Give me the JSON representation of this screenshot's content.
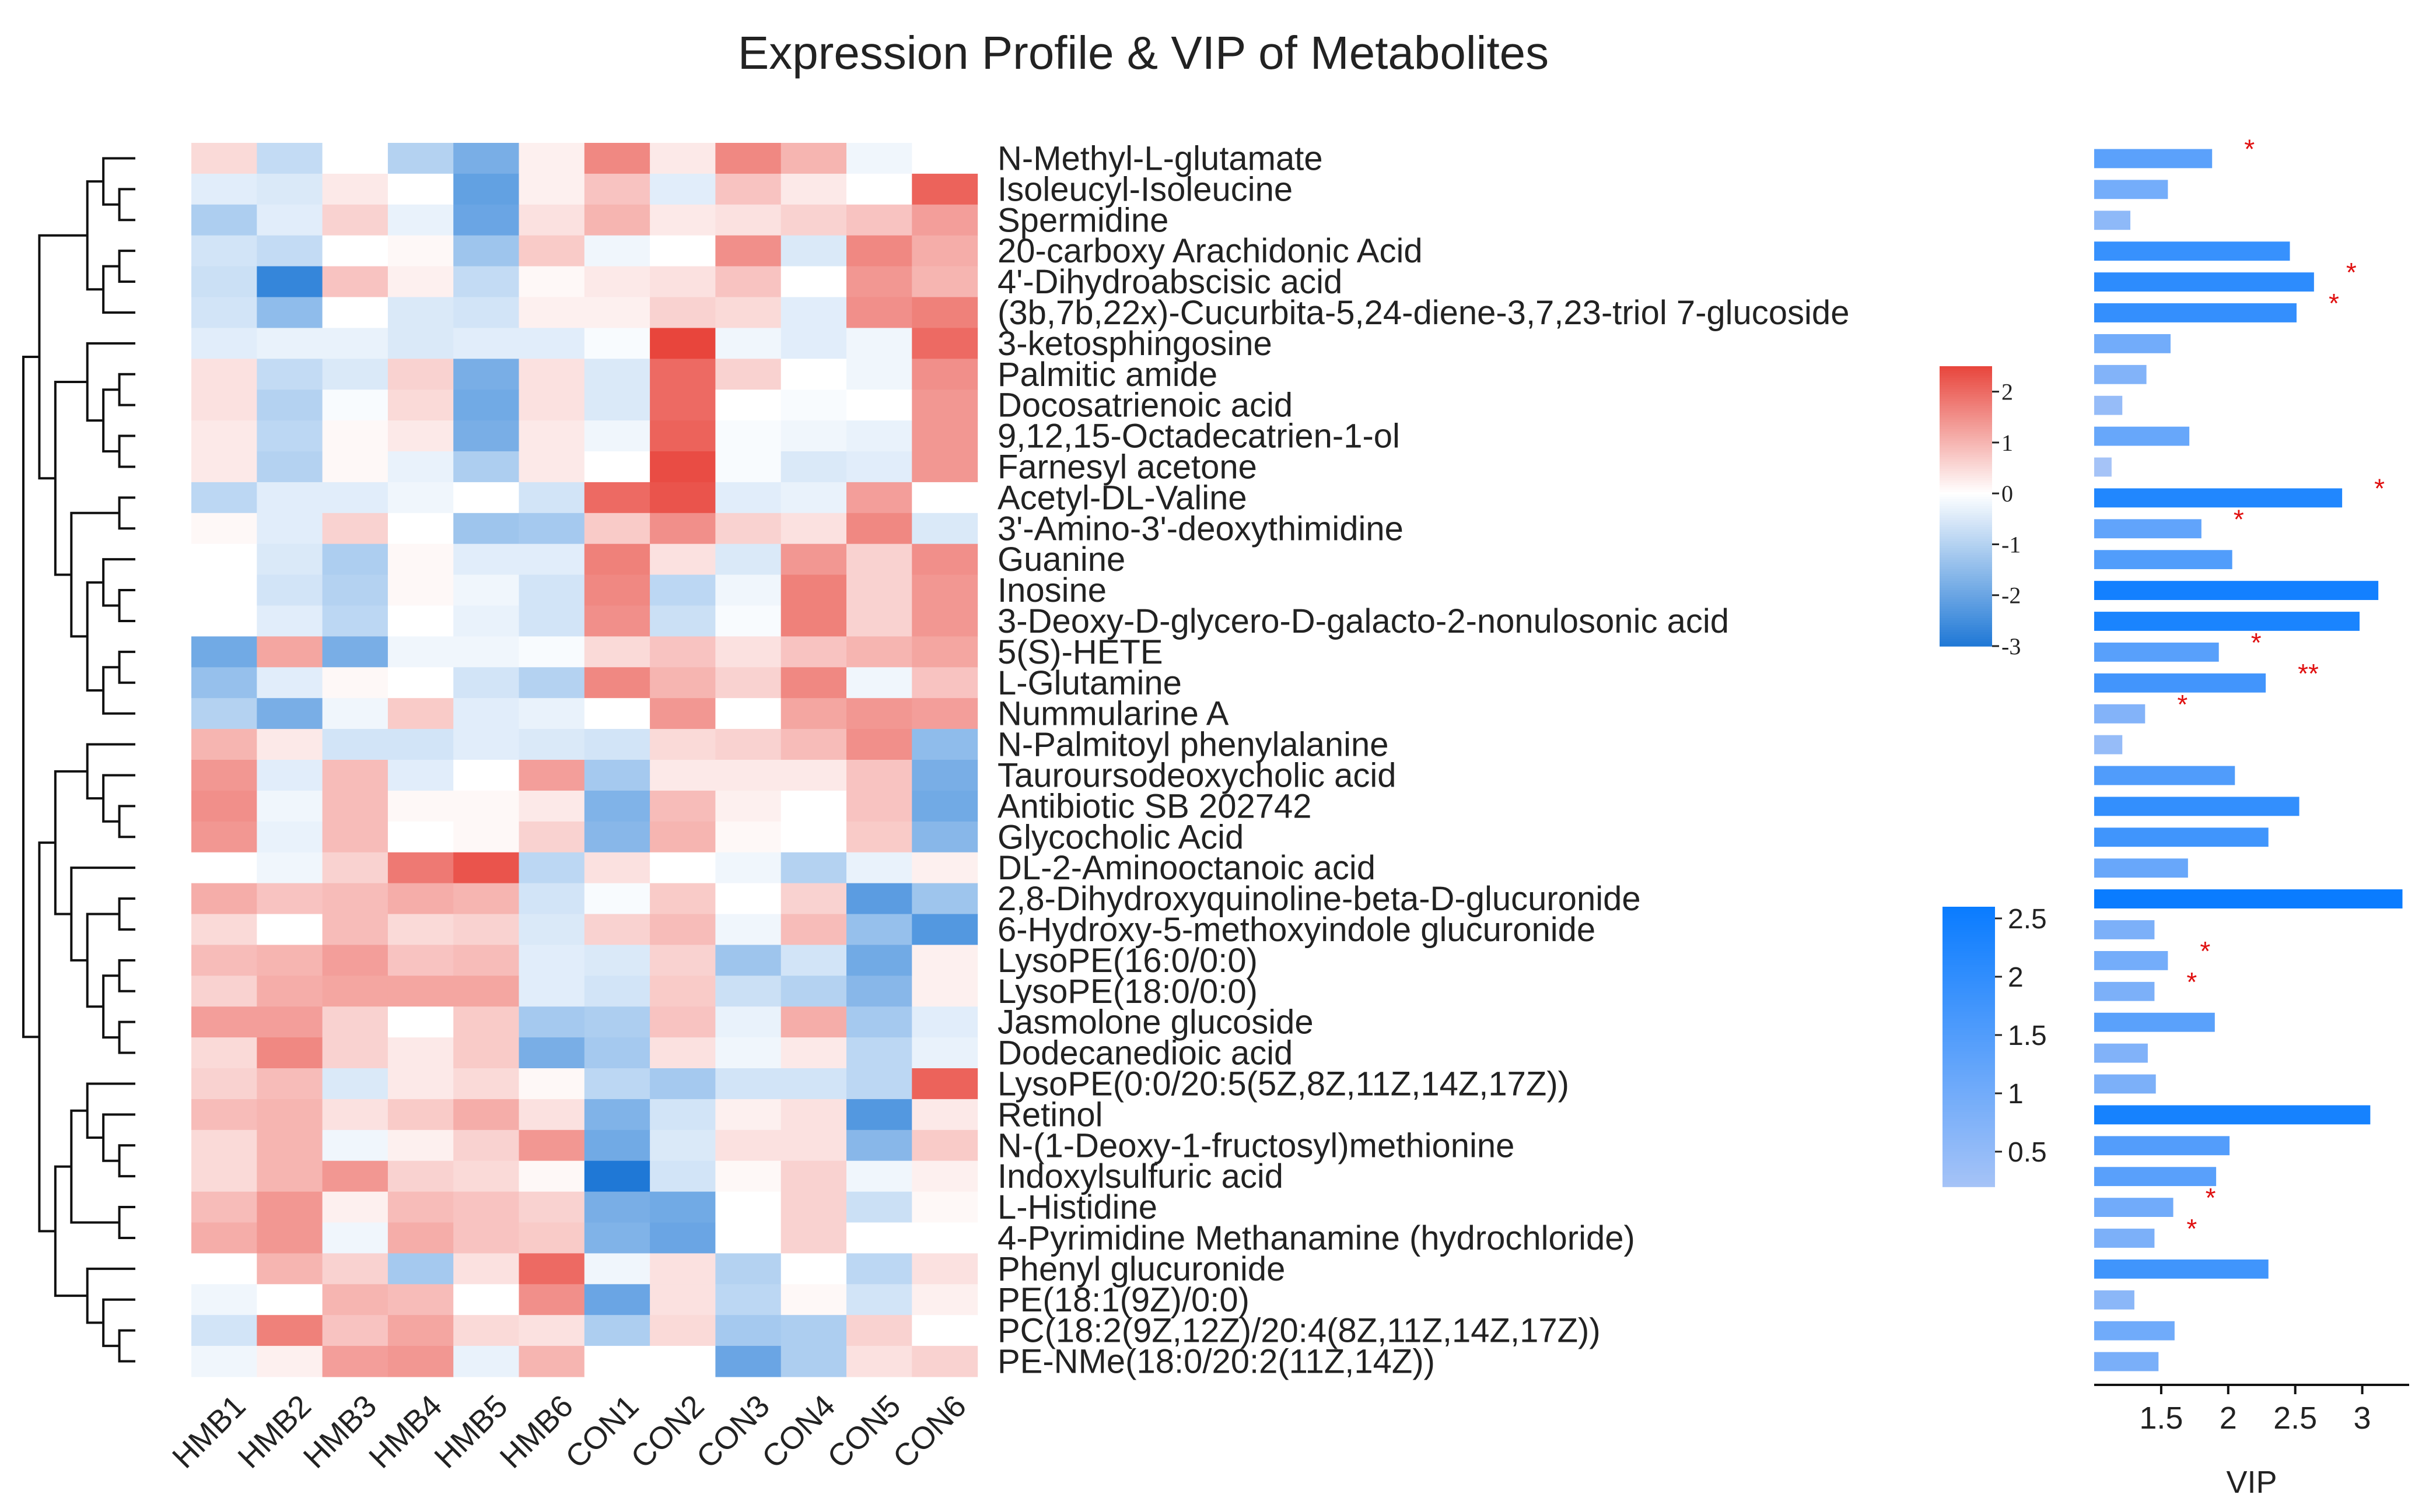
{
  "chart_data": {
    "type": "heatmap",
    "title": "Expression Profile & VIP of Metabolites",
    "samples": [
      "HMB1",
      "HMB2",
      "HMB3",
      "HMB4",
      "HMB5",
      "HMB6",
      "CON1",
      "CON2",
      "CON3",
      "CON4",
      "CON5",
      "CON6"
    ],
    "metabolites": [
      "N-Methyl-L-glutamate",
      "Isoleucyl-Isoleucine",
      "Spermidine",
      "20-carboxy Arachidonic Acid",
      "4'-Dihydroabscisic acid",
      "(3b,7b,22x)-Cucurbita-5,24-diene-3,7,23-triol 7-glucoside",
      "3-ketosphingosine",
      "Palmitic amide",
      "Docosatrienoic acid",
      "9,12,15-Octadecatrien-1-ol",
      "Farnesyl acetone",
      "Acetyl-DL-Valine",
      "3'-Amino-3'-deoxythimidine",
      "Guanine",
      "Inosine",
      "3-Deoxy-D-glycero-D-galacto-2-nonulosonic acid",
      "5(S)-HETE",
      "L-Glutamine",
      "Nummularine A",
      "N-Palmitoyl phenylalanine",
      "Tauroursodeoxycholic acid",
      "Antibiotic SB 202742",
      "Glycocholic Acid",
      "DL-2-Aminooctanoic acid",
      "2,8-Dihydroxyquinoline-beta-D-glucuronide",
      "6-Hydroxy-5-methoxyindole glucuronide",
      "LysoPE(16:0/0:0)",
      "LysoPE(18:0/0:0)",
      "Jasmolone glucoside",
      "Dodecanedioic acid",
      "LysoPE(0:0/20:5(5Z,8Z,11Z,14Z,17Z))",
      "Retinol",
      "N-(1-Deoxy-1-fructosyl)methionine",
      "Indoxylsulfuric acid",
      "L-Histidine",
      "4-Pyrimidine Methanamine (hydrochloride)",
      "Phenyl glucuronide",
      "PE(18:1(9Z)/0:0)",
      "PC(18:2(9Z,12Z)/20:4(8Z,11Z,14Z,17Z))",
      "PE-NMe(18:0/20:2(11Z,14Z))"
    ],
    "zscores": [
      [
        0.5,
        -0.8,
        0.0,
        -1.0,
        -1.8,
        0.2,
        1.6,
        0.3,
        1.6,
        1.0,
        -0.2,
        0.0
      ],
      [
        -0.4,
        -0.5,
        0.3,
        0.0,
        -2.1,
        0.2,
        0.8,
        -0.4,
        0.8,
        0.3,
        0.0,
        2.1
      ],
      [
        -1.1,
        -0.4,
        0.6,
        -0.3,
        -2.0,
        0.4,
        1.0,
        0.3,
        0.4,
        0.6,
        0.8,
        1.3
      ],
      [
        -0.6,
        -0.8,
        0.0,
        0.1,
        -1.3,
        0.7,
        -0.2,
        0.0,
        1.5,
        -0.5,
        1.6,
        1.1
      ],
      [
        -0.7,
        -2.7,
        0.8,
        0.2,
        -0.8,
        0.1,
        0.3,
        0.4,
        0.8,
        0.0,
        1.4,
        1.0
      ],
      [
        -0.6,
        -1.5,
        0.0,
        -0.5,
        -0.6,
        0.2,
        0.2,
        0.6,
        0.5,
        -0.4,
        1.5,
        1.7
      ],
      [
        -0.4,
        -0.3,
        -0.3,
        -0.5,
        -0.4,
        -0.4,
        -0.1,
        2.5,
        -0.2,
        -0.4,
        -0.2,
        2.0
      ],
      [
        0.4,
        -0.8,
        -0.5,
        0.6,
        -1.8,
        0.4,
        -0.5,
        2.0,
        0.6,
        0.0,
        -0.2,
        1.5
      ],
      [
        0.4,
        -1.0,
        -0.1,
        0.5,
        -1.9,
        0.4,
        -0.5,
        2.0,
        0.0,
        -0.1,
        0.0,
        1.4
      ],
      [
        0.3,
        -0.9,
        0.1,
        0.3,
        -1.8,
        0.3,
        -0.2,
        2.1,
        -0.1,
        -0.2,
        -0.3,
        1.4
      ],
      [
        0.3,
        -1.0,
        0.1,
        -0.3,
        -1.1,
        0.3,
        0.0,
        2.4,
        -0.1,
        -0.5,
        -0.4,
        1.4
      ],
      [
        -0.9,
        -0.4,
        -0.4,
        -0.2,
        0.0,
        -0.6,
        2.0,
        2.3,
        -0.4,
        -0.3,
        1.3,
        0.0
      ],
      [
        0.1,
        -0.4,
        0.6,
        0.0,
        -1.3,
        -1.2,
        0.7,
        1.5,
        0.6,
        0.4,
        1.6,
        -0.5
      ],
      [
        0.0,
        -0.5,
        -1.1,
        0.1,
        -0.4,
        -0.4,
        1.7,
        0.4,
        -0.5,
        1.4,
        0.6,
        1.5
      ],
      [
        0.0,
        -0.6,
        -1.0,
        0.1,
        -0.2,
        -0.6,
        1.6,
        -0.9,
        -0.2,
        1.7,
        0.6,
        1.4
      ],
      [
        0.0,
        -0.4,
        -0.9,
        0.0,
        -0.3,
        -0.6,
        1.5,
        -0.7,
        -0.1,
        1.7,
        0.6,
        1.4
      ],
      [
        -1.9,
        1.2,
        -1.8,
        -0.2,
        -0.2,
        -0.1,
        0.5,
        0.8,
        0.4,
        0.8,
        1.0,
        1.2
      ],
      [
        -1.4,
        -0.4,
        0.1,
        0.0,
        -0.6,
        -1.0,
        1.6,
        1.0,
        0.6,
        1.6,
        -0.2,
        0.8
      ],
      [
        -1.0,
        -1.8,
        -0.2,
        0.7,
        -0.4,
        -0.3,
        0.0,
        1.4,
        0.0,
        1.2,
        1.4,
        1.3
      ],
      [
        1.0,
        0.3,
        -0.6,
        -0.6,
        -0.4,
        -0.5,
        -0.6,
        0.5,
        0.6,
        0.9,
        1.5,
        -1.5
      ],
      [
        1.4,
        -0.4,
        0.9,
        -0.4,
        0.0,
        1.3,
        -1.2,
        0.3,
        0.3,
        0.3,
        0.8,
        -1.8
      ],
      [
        1.5,
        -0.2,
        0.9,
        0.1,
        0.1,
        0.3,
        -1.7,
        0.9,
        0.2,
        0.0,
        0.8,
        -1.9
      ],
      [
        1.4,
        -0.3,
        0.9,
        0.0,
        0.1,
        0.6,
        -1.6,
        1.0,
        0.1,
        0.0,
        0.7,
        -1.6
      ],
      [
        0.0,
        -0.2,
        0.6,
        1.8,
        2.3,
        -0.9,
        0.4,
        0.0,
        -0.2,
        -1.0,
        -0.3,
        0.2
      ],
      [
        1.1,
        0.8,
        0.9,
        1.1,
        1.0,
        -0.6,
        -0.1,
        0.7,
        0.0,
        0.6,
        -2.2,
        -1.3
      ],
      [
        0.5,
        0.0,
        0.9,
        0.5,
        0.6,
        -0.5,
        0.6,
        0.9,
        -0.2,
        0.9,
        -1.4,
        -2.3
      ],
      [
        0.9,
        1.0,
        1.3,
        0.8,
        0.9,
        -0.4,
        -0.5,
        0.6,
        -1.3,
        -0.6,
        -1.9,
        0.2
      ],
      [
        0.6,
        1.1,
        1.2,
        1.2,
        1.2,
        -0.4,
        -0.6,
        0.7,
        -0.7,
        -1.0,
        -1.6,
        0.2
      ],
      [
        1.3,
        1.3,
        0.6,
        0.0,
        0.7,
        -1.2,
        -1.1,
        0.8,
        -0.3,
        1.1,
        -1.2,
        -0.4
      ],
      [
        0.5,
        1.6,
        0.6,
        0.3,
        0.7,
        -1.8,
        -1.2,
        0.4,
        -0.2,
        0.3,
        -0.9,
        -0.3
      ],
      [
        0.6,
        0.9,
        -0.5,
        0.3,
        0.5,
        0.1,
        -0.9,
        -1.2,
        -0.6,
        -0.6,
        -0.9,
        2.1
      ],
      [
        0.9,
        1.0,
        0.4,
        0.7,
        1.1,
        0.4,
        -1.7,
        -0.6,
        0.2,
        0.4,
        -2.3,
        0.3
      ],
      [
        0.5,
        1.0,
        -0.2,
        0.2,
        0.6,
        1.4,
        -1.9,
        -0.5,
        0.4,
        0.4,
        -1.6,
        0.7
      ],
      [
        0.5,
        1.0,
        1.4,
        0.6,
        0.5,
        0.1,
        -3.0,
        -0.6,
        0.1,
        0.6,
        -0.2,
        0.2
      ],
      [
        0.9,
        1.4,
        0.2,
        0.9,
        0.8,
        0.6,
        -1.8,
        -1.9,
        0.0,
        0.6,
        -0.7,
        0.1
      ],
      [
        1.1,
        1.4,
        -0.2,
        1.1,
        0.8,
        0.7,
        -1.7,
        -2.0,
        0.0,
        0.6,
        0.0,
        0.0
      ],
      [
        0.0,
        1.0,
        0.6,
        -1.2,
        0.4,
        2.0,
        -0.2,
        0.4,
        -1.0,
        0.0,
        -0.9,
        0.4
      ],
      [
        -0.2,
        0.0,
        1.0,
        0.9,
        0.0,
        1.5,
        -2.0,
        0.4,
        -0.9,
        0.1,
        -0.6,
        0.2
      ],
      [
        -0.6,
        1.7,
        0.8,
        1.2,
        0.5,
        0.4,
        -1.1,
        0.5,
        -1.2,
        -1.1,
        0.6,
        0.0
      ],
      [
        -0.2,
        0.2,
        1.3,
        1.4,
        -0.3,
        1.0,
        0.0,
        0.0,
        -2.0,
        -1.1,
        0.4,
        0.6
      ]
    ],
    "vip": [
      1.88,
      1.55,
      1.27,
      2.46,
      2.64,
      2.51,
      1.57,
      1.39,
      1.21,
      1.71,
      1.13,
      2.85,
      1.8,
      2.03,
      3.12,
      2.98,
      1.93,
      2.28,
      1.38,
      1.21,
      2.05,
      2.53,
      2.3,
      1.7,
      3.3,
      1.45,
      1.55,
      1.45,
      1.9,
      1.4,
      1.46,
      3.06,
      2.01,
      1.91,
      1.59,
      1.45,
      2.3,
      1.3,
      1.6,
      1.48
    ],
    "significance": [
      "*",
      "",
      "",
      "",
      "*",
      "*",
      "",
      "",
      "",
      "",
      "",
      "*",
      "*",
      "",
      "",
      "",
      "*",
      "**",
      "*",
      "",
      "",
      "",
      "",
      "",
      "",
      "",
      "*",
      "*",
      "",
      "",
      "",
      "",
      "",
      "",
      "*",
      "*",
      "",
      "",
      "",
      ""
    ],
    "colorbar_heatmap": {
      "ticks": [
        "2",
        "1",
        "0",
        "-1",
        "-2",
        "-3"
      ],
      "values": [
        2,
        1,
        0,
        -1,
        -2,
        -3
      ],
      "range": [
        -3,
        2.5
      ],
      "colors": {
        "high": "#e8453c",
        "mid": "#ffffff",
        "low": "#1f78d6"
      }
    },
    "colorbar_vip": {
      "ticks": [
        "2.5",
        "2",
        "1.5",
        "1",
        "0.5"
      ],
      "values": [
        2.5,
        2,
        1.5,
        1,
        0.5
      ],
      "range": [
        0.2,
        2.6
      ],
      "colors": {
        "high": "#0a7cff",
        "low": "#a5c3f7"
      }
    },
    "vip_axis": {
      "xlabel": "VIP",
      "ticks": [
        "1.5",
        "2",
        "2.5",
        "3"
      ],
      "tick_values": [
        1.5,
        2,
        2.5,
        3
      ],
      "xlim": [
        1.0,
        3.35
      ]
    }
  }
}
